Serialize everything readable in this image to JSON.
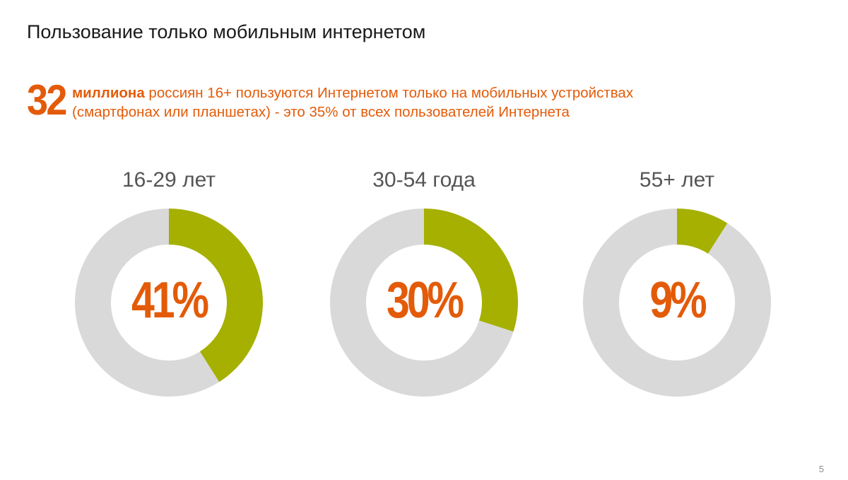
{
  "slide": {
    "title": "Пользование только мобильным интернетом",
    "highlight": {
      "number": "32",
      "bold_text": "миллиона",
      "line1_rest": " россиян 16+ пользуются Интернетом только на мобильных устройствах",
      "line2": "(смартфонах или планшетах) - это 35% от всех пользователей Интернета"
    },
    "page_number": "5"
  },
  "colors": {
    "accent": "#e35b09",
    "filled": "#a5b000",
    "remainder": "#d9d9d9"
  },
  "chart_data": {
    "type": "pie",
    "categories": [
      "16-29 лет",
      "30-54 года",
      "55+ лет"
    ],
    "values": [
      41,
      30,
      9
    ],
    "value_labels": [
      "41%",
      "30%",
      "9%"
    ],
    "unit": "%",
    "total": 100
  }
}
